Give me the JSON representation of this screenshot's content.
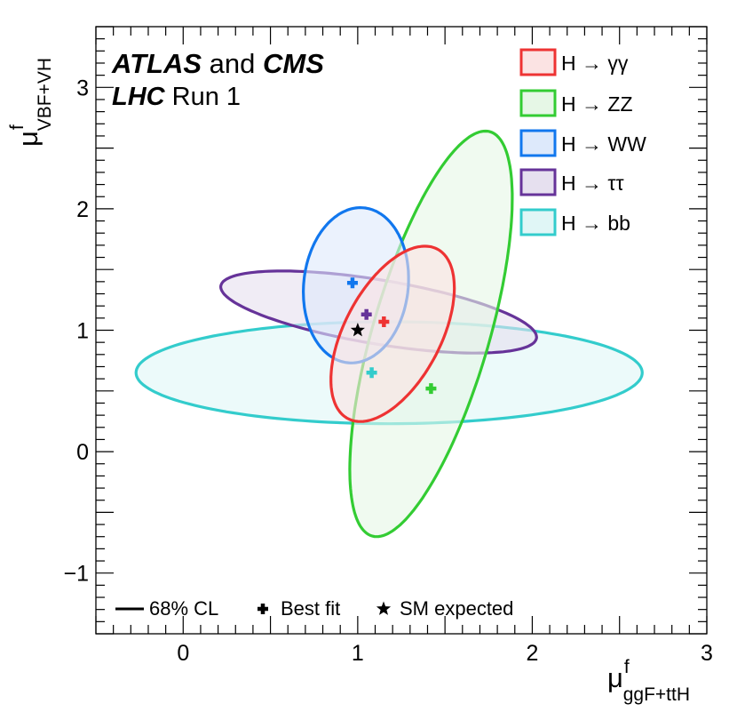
{
  "chart_data": {
    "type": "scatter",
    "title": {
      "line1_bold": "ATLAS",
      "line1_mid": " and ",
      "line1_bold2": "CMS",
      "line2_bold": "LHC",
      "line2_rest": " Run 1"
    },
    "xlabel": {
      "main": "μ",
      "sup": "f",
      "sub": "ggF+ttH"
    },
    "ylabel": {
      "main": "μ",
      "sup": "f",
      "sub": "VBF+VH"
    },
    "xlim": [
      -0.5,
      3.0
    ],
    "ylim": [
      -1.5,
      3.5
    ],
    "xticks": [
      0,
      1,
      2,
      3
    ],
    "xtick_labels": [
      "0",
      "1",
      "2",
      "3"
    ],
    "yticks": [
      -1,
      0,
      1,
      2,
      3
    ],
    "ytick_labels": [
      "−1",
      "0",
      "1",
      "2",
      "3"
    ],
    "legend_position": "top-right",
    "series": [
      {
        "name": "H → γγ",
        "color": "#ee3333",
        "fill": "#fbe3e3",
        "best_fit": [
          1.15,
          1.07
        ],
        "contour": {
          "cx": 1.2,
          "cy": 0.97,
          "a": 0.75,
          "b": 0.29,
          "angle_deg": 73
        }
      },
      {
        "name": "H → ZZ",
        "color": "#33cc33",
        "fill": "#e6f7e6",
        "best_fit": [
          1.42,
          0.52
        ],
        "contour": {
          "cx": 1.42,
          "cy": 0.97,
          "a": 1.7,
          "b": 0.34,
          "angle_deg": 79
        }
      },
      {
        "name": "H → WW",
        "color": "#1177ee",
        "fill": "#dde9fb",
        "best_fit": [
          0.97,
          1.39
        ],
        "contour": {
          "cx": 0.99,
          "cy": 1.37,
          "a": 0.64,
          "b": 0.3,
          "angle_deg": 87
        }
      },
      {
        "name": "H → ττ",
        "color": "#663399",
        "fill": "#e6e0ef",
        "best_fit": [
          1.05,
          1.13
        ],
        "contour": {
          "cx": 1.12,
          "cy": 1.15,
          "a": 0.93,
          "b": 0.26,
          "angle_deg": -14
        }
      },
      {
        "name": "H → bb",
        "color": "#33cccc",
        "fill": "#e0f6f6",
        "best_fit": [
          1.08,
          0.65
        ],
        "contour": {
          "cx": 1.18,
          "cy": 0.65,
          "a": 1.45,
          "b": 0.42,
          "angle_deg": 0
        }
      }
    ],
    "sm_expected": [
      1.0,
      1.0
    ],
    "bottom_legend": {
      "cl_label": "68% CL",
      "best_fit_label": "Best fit",
      "sm_label": "SM expected"
    }
  }
}
